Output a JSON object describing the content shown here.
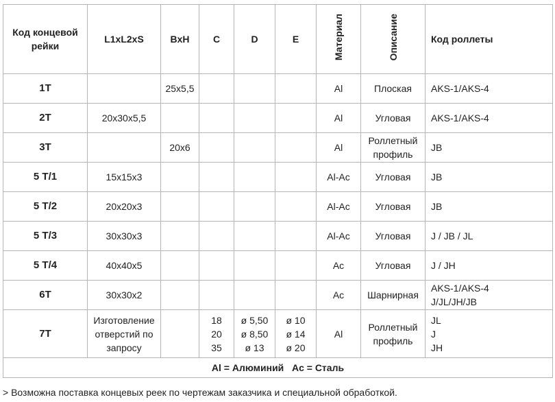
{
  "table": {
    "header": [
      "Код концевой рейки",
      "L1xL2xS",
      "BxH",
      "C",
      "D",
      "E",
      "Материал",
      "Описание",
      "Код роллеты"
    ],
    "rows": [
      {
        "code": "1T",
        "l": null,
        "bh": "25x5,5",
        "c": null,
        "d": null,
        "e": null,
        "material": "Al",
        "description": "Плоская",
        "roll": "AKS-1/AKS-4"
      },
      {
        "code": "2T",
        "l": "20x30x5,5",
        "bh": null,
        "c": null,
        "d": null,
        "e": null,
        "material": "Al",
        "description": "Угловая",
        "roll": "AKS-1/AKS-4"
      },
      {
        "code": "3T",
        "l": null,
        "bh": "20x6",
        "c": null,
        "d": null,
        "e": null,
        "material": "Al",
        "description": "Роллетный профиль",
        "roll": "JB"
      },
      {
        "code": "5 T/1",
        "l": "15x15x3",
        "bh": null,
        "c": null,
        "d": null,
        "e": null,
        "material": "Al-Ac",
        "description": "Угловая",
        "roll": "JB"
      },
      {
        "code": "5 T/2",
        "l": "20x20x3",
        "bh": null,
        "c": null,
        "d": null,
        "e": null,
        "material": "Al-Ac",
        "description": "Угловая",
        "roll": "JB"
      },
      {
        "code": "5 T/3",
        "l": "30x30x3",
        "bh": null,
        "c": null,
        "d": null,
        "e": null,
        "material": "Al-Ac",
        "description": "Угловая",
        "roll": "J / JB / JL"
      },
      {
        "code": "5 T/4",
        "l": "40x40x5",
        "bh": null,
        "c": null,
        "d": null,
        "e": null,
        "material": "Ac",
        "description": "Угловая",
        "roll": "J / JH"
      },
      {
        "code": "6T",
        "l": "30x30x2",
        "bh": null,
        "c": null,
        "d": null,
        "e": null,
        "material": "Ac",
        "description": "Шарнирная",
        "roll": [
          "AKS-1/AKS-4",
          "J/JL/JH/JB"
        ]
      },
      {
        "code": "7T",
        "l": "Изготовление отверстий по запросу",
        "bh": null,
        "c": [
          "18",
          "20",
          "35"
        ],
        "d": [
          "ø 5,50",
          "ø 8,50",
          "ø 13"
        ],
        "e": [
          "ø 10",
          "ø 14",
          "ø 20"
        ],
        "material": "Al",
        "description": "Роллетный профиль",
        "roll": [
          "JL",
          "J",
          "JH"
        ]
      }
    ],
    "legend": [
      "Al = Алюминий",
      "Ac = Сталь"
    ],
    "note": "> Возможна поставка концевых реек по чертежам заказчика и специальной обработкой."
  }
}
